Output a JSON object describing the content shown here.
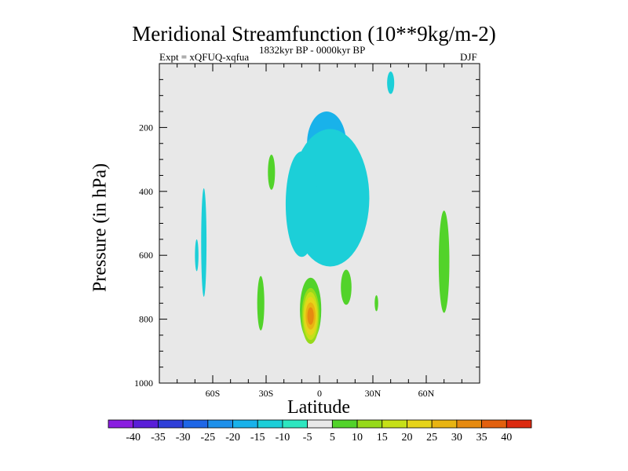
{
  "chart_data": {
    "type": "filled-contour",
    "title": "Meridional Streamfunction (10**9kg/m-2)",
    "subtitle_left": "Expt = xQFUQ-xqfua",
    "subtitle_center": "1832kyr BP - 0000kyr BP",
    "subtitle_right": "DJF",
    "xlabel": "Latitude",
    "ylabel": "Pressure (in hPa)",
    "xlim": [
      -90,
      90
    ],
    "ylim": [
      1000,
      0
    ],
    "x_ticks": [
      {
        "value": -60,
        "label": "60S"
      },
      {
        "value": -30,
        "label": "30S"
      },
      {
        "value": 0,
        "label": "0"
      },
      {
        "value": 30,
        "label": "30N"
      },
      {
        "value": 60,
        "label": "60N"
      }
    ],
    "y_ticks": [
      {
        "value": 200,
        "label": "200"
      },
      {
        "value": 400,
        "label": "400"
      },
      {
        "value": 600,
        "label": "600"
      },
      {
        "value": 800,
        "label": "800"
      },
      {
        "value": 1000,
        "label": "1000"
      }
    ],
    "background_color": "#e8e8e8",
    "colorbar": {
      "levels": [
        -40,
        -35,
        -30,
        -25,
        -20,
        -15,
        -10,
        -5,
        5,
        10,
        15,
        20,
        25,
        30,
        35,
        40
      ],
      "labels": [
        "-40",
        "-35",
        "-30",
        "-25",
        "-20",
        "-15",
        "-10",
        "-5",
        "5",
        "10",
        "15",
        "20",
        "25",
        "30",
        "35",
        "40"
      ],
      "colors": [
        "#8a1ee0",
        "#5a1fd8",
        "#2f3fd8",
        "#1e66e6",
        "#1e90ea",
        "#19b2ea",
        "#1ccfd8",
        "#2ee6c0",
        "#e8e8e8",
        "#52d32a",
        "#96da1a",
        "#c6e018",
        "#e6d41a",
        "#e8b412",
        "#e68a10",
        "#e2600e",
        "#dc2a10"
      ]
    },
    "regions": [
      {
        "name": "blue-core-upper",
        "level": -30,
        "lon": 2,
        "p": 270,
        "w": 3,
        "h": 110
      },
      {
        "name": "blue-core-lower",
        "level": -20,
        "lon": 4,
        "p": 500,
        "w": 3,
        "h": 130
      },
      {
        "name": "blue-mid",
        "level": -20,
        "lon": 3,
        "p": 330,
        "w": 6,
        "h": 240
      },
      {
        "name": "cyan-upper",
        "level": -15,
        "lon": 4,
        "p": 250,
        "w": 11,
        "h": 200
      },
      {
        "name": "cyan-column",
        "level": -15,
        "lon": 5,
        "p": 450,
        "w": 8,
        "h": 330
      },
      {
        "name": "teal-envelope",
        "level": -10,
        "lon": 6,
        "p": 420,
        "w": 22,
        "h": 430
      },
      {
        "name": "teal-left-column",
        "level": -10,
        "lon": -10,
        "p": 440,
        "w": 9,
        "h": 330
      },
      {
        "name": "teal-top-right",
        "level": -10,
        "lon": 40,
        "p": 60,
        "w": 2,
        "h": 70
      },
      {
        "name": "teal-far-left-a",
        "level": -10,
        "lon": -69,
        "p": 600,
        "w": 1,
        "h": 100
      },
      {
        "name": "teal-far-left-b",
        "level": -10,
        "lon": -65,
        "p": 560,
        "w": 1.5,
        "h": 340
      },
      {
        "name": "green-sh-high",
        "level": 5,
        "lon": -27,
        "p": 340,
        "w": 2,
        "h": 110
      },
      {
        "name": "green-sh-low",
        "level": 5,
        "lon": -33,
        "p": 750,
        "w": 2,
        "h": 170
      },
      {
        "name": "green-nh-mid",
        "level": 5,
        "lon": 15,
        "p": 700,
        "w": 3,
        "h": 110
      },
      {
        "name": "green-nh-high",
        "level": 5,
        "lon": 70,
        "p": 620,
        "w": 3,
        "h": 320
      },
      {
        "name": "green-nh-small",
        "level": 5,
        "lon": 32,
        "p": 750,
        "w": 1,
        "h": 50
      },
      {
        "name": "green-cell",
        "level": 5,
        "lon": -5,
        "p": 770,
        "w": 6,
        "h": 200
      },
      {
        "name": "lime-cell",
        "level": 10,
        "lon": -5,
        "p": 790,
        "w": 5,
        "h": 175
      },
      {
        "name": "yellow-cell",
        "level": 15,
        "lon": -5,
        "p": 790,
        "w": 4.2,
        "h": 150
      },
      {
        "name": "gold-cell",
        "level": 20,
        "lon": -5,
        "p": 790,
        "w": 3.6,
        "h": 120
      },
      {
        "name": "orange-cell",
        "level": 25,
        "lon": -5,
        "p": 790,
        "w": 2.8,
        "h": 85
      },
      {
        "name": "dark-orange-cell",
        "level": 30,
        "lon": -5,
        "p": 790,
        "w": 1.8,
        "h": 55
      }
    ]
  }
}
